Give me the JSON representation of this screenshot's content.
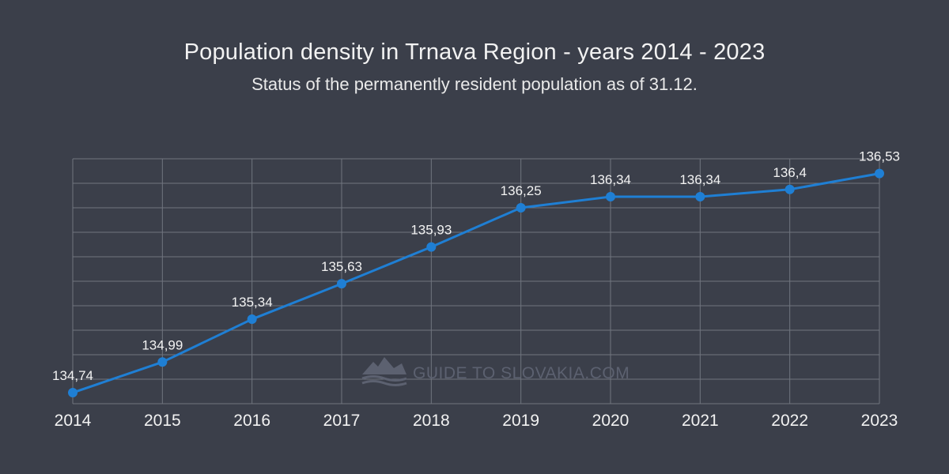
{
  "chart_data": {
    "type": "line",
    "title": "Population density in Trnava Region - years 2014 - 2023",
    "subtitle": "Status of the permanently resident population as of 31.12.",
    "categories": [
      "2014",
      "2015",
      "2016",
      "2017",
      "2018",
      "2019",
      "2020",
      "2021",
      "2022",
      "2023"
    ],
    "series": [
      {
        "name": "Population density",
        "values": [
          134.74,
          134.99,
          135.34,
          135.63,
          135.93,
          136.25,
          136.34,
          136.34,
          136.4,
          136.53
        ],
        "labels": [
          "134,74",
          "134,99",
          "135,34",
          "135,63",
          "135,93",
          "136,25",
          "136,34",
          "136,34",
          "136,4",
          "136,53"
        ]
      }
    ],
    "ylim": [
      134.65,
      136.65
    ],
    "y_grid_lines": 10,
    "grid": true,
    "xlabel": "",
    "ylabel": ""
  },
  "colors": {
    "background": "#3b3f4a",
    "line": "#1f7fd4",
    "grid": "#70757f",
    "text": "#f2f2f2"
  },
  "watermark": {
    "text": "GUIDE TO SLOVAKIA.COM",
    "icon": "mountain-logo-icon"
  }
}
